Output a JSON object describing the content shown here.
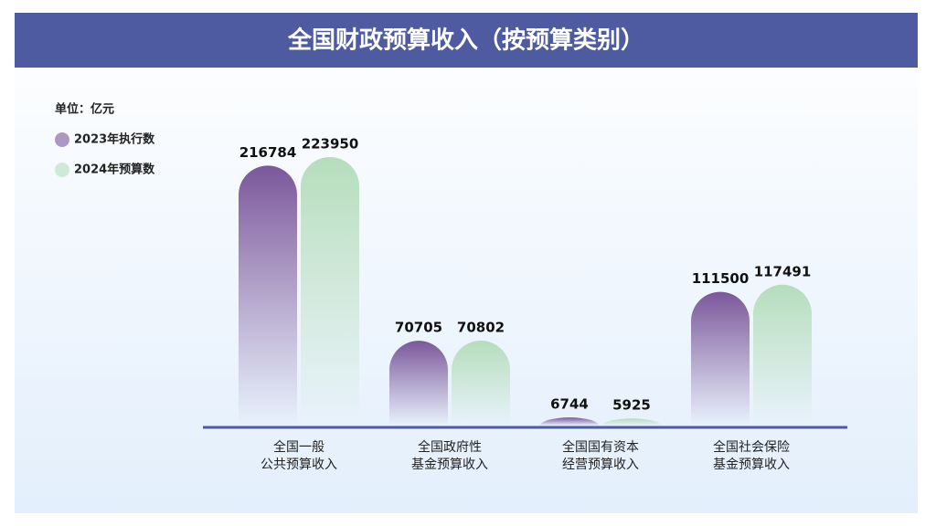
{
  "chart_data": {
    "type": "bar",
    "title": "全国财政预算收入（按预算类别）",
    "unit": "单位：亿元",
    "categories": [
      [
        "全国一般",
        "公共预算收入"
      ],
      [
        "全国政府性",
        "基金预算收入"
      ],
      [
        "全国国有资本",
        "经营预算收入"
      ],
      [
        "全国社会保险",
        "基金预算收入"
      ]
    ],
    "series": [
      {
        "name": "2023年执行数",
        "color": "#7b579b",
        "values": [
          216784,
          70705,
          6744,
          111500
        ]
      },
      {
        "name": "2024年预算数",
        "color": "#b5ddbc",
        "values": [
          223950,
          70802,
          5925,
          117491
        ]
      }
    ]
  }
}
